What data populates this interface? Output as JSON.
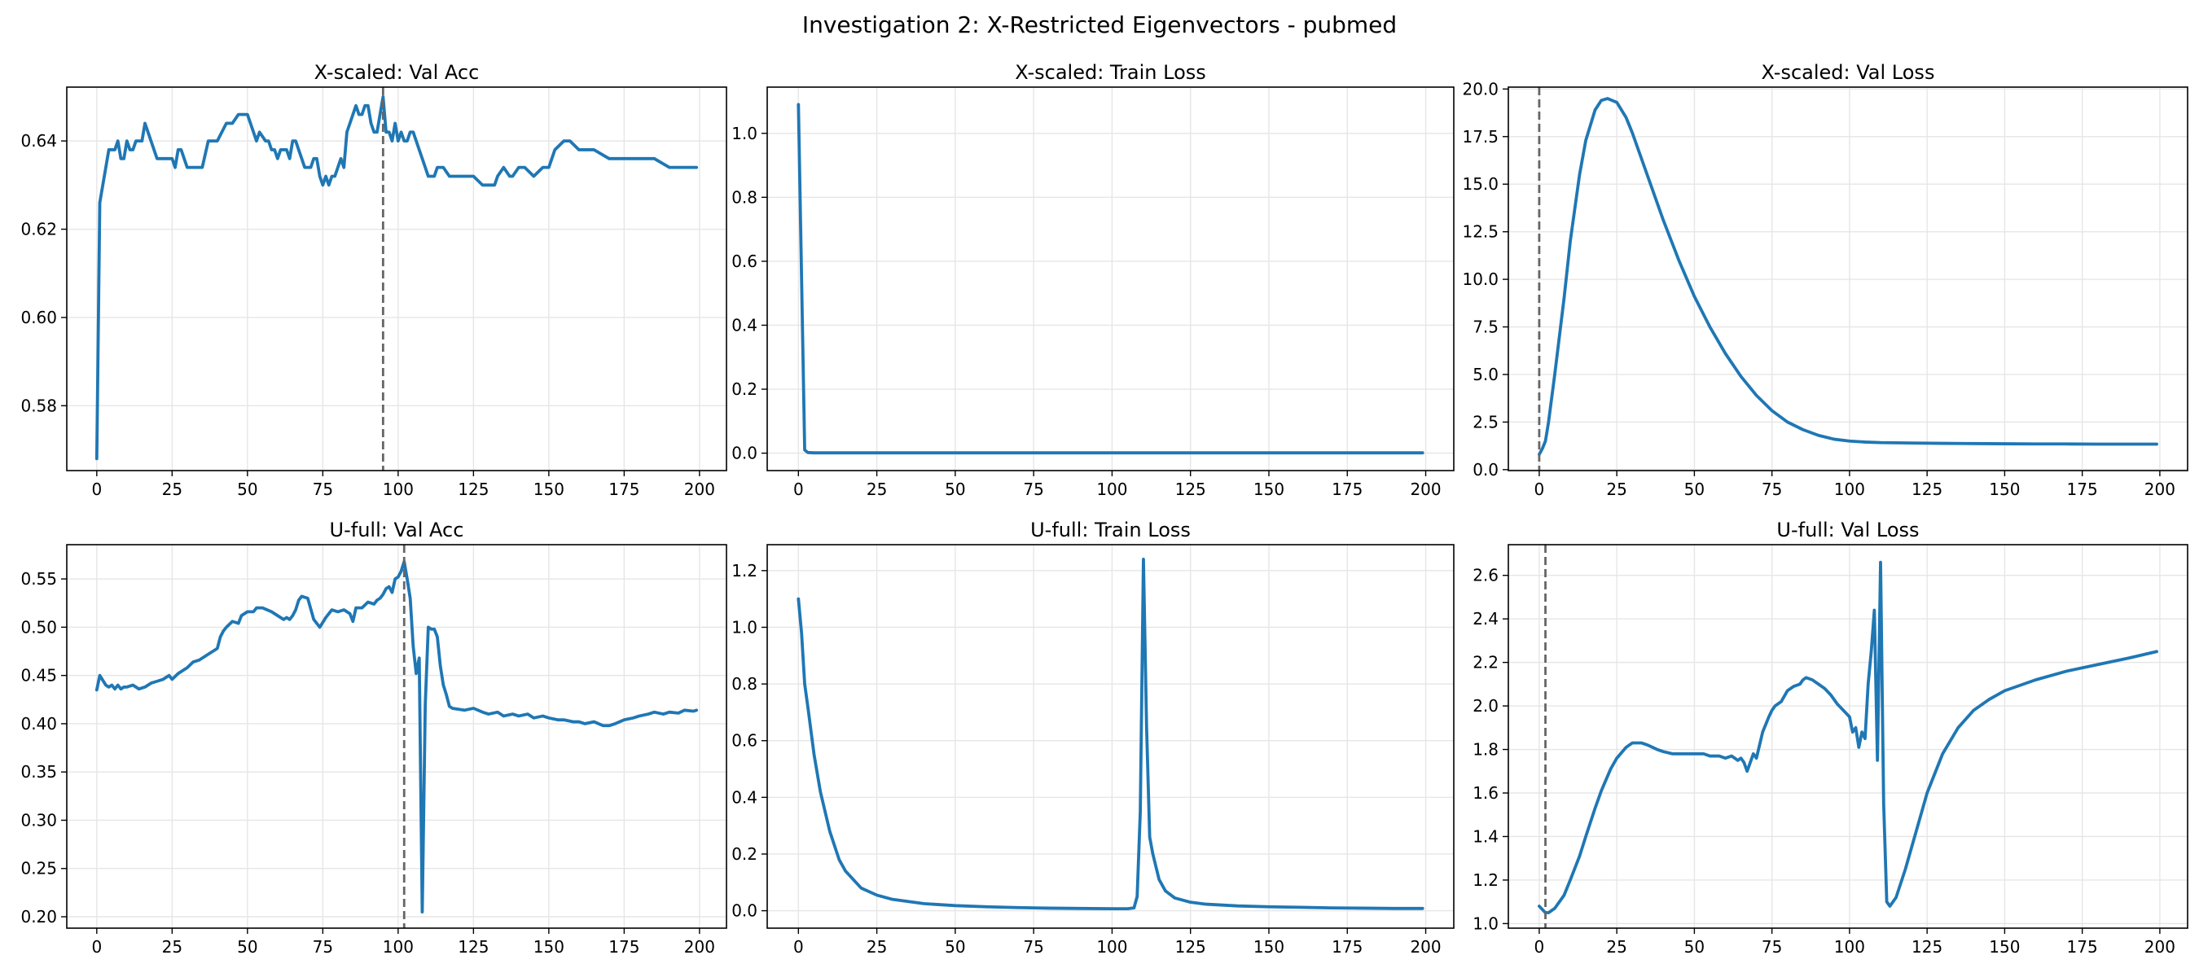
{
  "figure": {
    "suptitle": "Investigation 2: X-Restricted Eigenvectors - pubmed",
    "line_color": "#1f77b4",
    "vline_color": "#666666"
  },
  "chart_data": [
    {
      "type": "line",
      "title": "X-scaled: Val Acc",
      "xlim": [
        -9.95,
        208.95
      ],
      "ylim": [
        0.5653,
        0.6522
      ],
      "xticks": [
        0,
        25,
        50,
        75,
        100,
        125,
        150,
        175,
        200
      ],
      "yticks": [
        0.58,
        0.6,
        0.62,
        0.64
      ],
      "ytick_labels": [
        "0.58",
        "0.60",
        "0.62",
        "0.64"
      ],
      "grid": true,
      "vline_x": 95,
      "x": [
        0,
        1,
        2,
        3,
        4,
        5,
        6,
        7,
        8,
        9,
        10,
        11,
        12,
        13,
        14,
        15,
        16,
        17,
        18,
        19,
        20,
        22,
        25,
        26,
        27,
        28,
        30,
        33,
        35,
        37,
        38,
        40,
        43,
        45,
        47,
        48,
        50,
        51,
        52,
        53,
        54,
        56,
        57,
        58,
        59,
        60,
        61,
        62,
        63,
        64,
        65,
        66,
        67,
        68,
        69,
        70,
        71,
        72,
        73,
        74,
        75,
        76,
        77,
        78,
        79,
        80,
        81,
        82,
        83,
        84,
        85,
        86,
        87,
        88,
        89,
        90,
        91,
        92,
        93,
        94,
        95,
        96,
        97,
        98,
        99,
        100,
        101,
        102,
        103,
        104,
        105,
        106,
        107,
        108,
        109,
        110,
        112,
        113,
        115,
        117,
        118,
        120,
        123,
        125,
        128,
        130,
        132,
        133,
        135,
        137,
        138,
        140,
        142,
        145,
        148,
        150,
        152,
        155,
        157,
        160,
        165,
        170,
        175,
        181,
        182,
        185,
        190,
        195,
        199
      ],
      "y": [
        0.568,
        0.626,
        0.63,
        0.634,
        0.638,
        0.638,
        0.638,
        0.64,
        0.636,
        0.636,
        0.64,
        0.638,
        0.638,
        0.64,
        0.64,
        0.64,
        0.644,
        0.642,
        0.64,
        0.638,
        0.636,
        0.636,
        0.636,
        0.634,
        0.638,
        0.638,
        0.634,
        0.634,
        0.634,
        0.64,
        0.64,
        0.64,
        0.644,
        0.644,
        0.646,
        0.646,
        0.646,
        0.644,
        0.642,
        0.64,
        0.642,
        0.64,
        0.64,
        0.638,
        0.638,
        0.636,
        0.638,
        0.638,
        0.638,
        0.636,
        0.64,
        0.64,
        0.638,
        0.636,
        0.634,
        0.634,
        0.634,
        0.636,
        0.636,
        0.632,
        0.63,
        0.632,
        0.63,
        0.632,
        0.632,
        0.634,
        0.636,
        0.634,
        0.642,
        0.644,
        0.646,
        0.648,
        0.646,
        0.646,
        0.648,
        0.648,
        0.644,
        0.642,
        0.642,
        0.646,
        0.65,
        0.642,
        0.642,
        0.64,
        0.644,
        0.64,
        0.642,
        0.64,
        0.64,
        0.642,
        0.642,
        0.64,
        0.638,
        0.636,
        0.634,
        0.632,
        0.632,
        0.634,
        0.634,
        0.632,
        0.632,
        0.632,
        0.632,
        0.632,
        0.63,
        0.63,
        0.63,
        0.632,
        0.634,
        0.632,
        0.632,
        0.634,
        0.634,
        0.632,
        0.634,
        0.634,
        0.638,
        0.64,
        0.64,
        0.638,
        0.638,
        0.636,
        0.636,
        0.636,
        0.636,
        0.636,
        0.634,
        0.634,
        0.634
      ]
    },
    {
      "type": "line",
      "title": "X-scaled: Train Loss",
      "xlim": [
        -9.95,
        208.95
      ],
      "ylim": [
        -0.0545,
        1.1445
      ],
      "xticks": [
        0,
        25,
        50,
        75,
        100,
        125,
        150,
        175,
        200
      ],
      "yticks": [
        0.0,
        0.2,
        0.4,
        0.6,
        0.8,
        1.0
      ],
      "ytick_labels": [
        "0.0",
        "0.2",
        "0.4",
        "0.6",
        "0.8",
        "1.0"
      ],
      "grid": true,
      "vline_x": null,
      "x": [
        0,
        1,
        2,
        3,
        5,
        10,
        50,
        100,
        150,
        199
      ],
      "y": [
        1.09,
        0.55,
        0.01,
        0.002,
        0.001,
        0.001,
        0.001,
        0.001,
        0.001,
        0.001
      ]
    },
    {
      "type": "line",
      "title": "X-scaled: Val Loss",
      "xlim": [
        -9.95,
        208.95
      ],
      "ylim": [
        -0.05,
        20.1
      ],
      "xticks": [
        0,
        25,
        50,
        75,
        100,
        125,
        150,
        175,
        200
      ],
      "yticks": [
        0.0,
        2.5,
        5.0,
        7.5,
        10.0,
        12.5,
        15.0,
        17.5,
        20.0
      ],
      "ytick_labels": [
        "0.0",
        "2.5",
        "5.0",
        "7.5",
        "10.0",
        "12.5",
        "15.0",
        "17.5",
        "20.0"
      ],
      "grid": true,
      "vline_x": 0,
      "x": [
        0,
        1,
        2,
        3,
        5,
        8,
        10,
        13,
        15,
        18,
        20,
        22,
        25,
        28,
        30,
        35,
        40,
        45,
        50,
        55,
        60,
        65,
        70,
        75,
        80,
        85,
        90,
        95,
        100,
        105,
        110,
        120,
        130,
        140,
        150,
        160,
        170,
        180,
        190,
        199
      ],
      "y": [
        0.8,
        1.1,
        1.5,
        2.5,
        5.0,
        9.0,
        12.0,
        15.5,
        17.3,
        18.9,
        19.4,
        19.5,
        19.3,
        18.5,
        17.7,
        15.4,
        13.1,
        11.0,
        9.1,
        7.5,
        6.1,
        4.9,
        3.9,
        3.1,
        2.5,
        2.1,
        1.8,
        1.6,
        1.5,
        1.45,
        1.42,
        1.4,
        1.38,
        1.37,
        1.36,
        1.35,
        1.35,
        1.34,
        1.34,
        1.34
      ]
    },
    {
      "type": "line",
      "title": "U-full: Val Acc",
      "xlim": [
        -9.95,
        208.95
      ],
      "ylim": [
        0.1882,
        0.5855
      ],
      "xticks": [
        0,
        25,
        50,
        75,
        100,
        125,
        150,
        175,
        200
      ],
      "yticks": [
        0.2,
        0.25,
        0.3,
        0.35,
        0.4,
        0.45,
        0.5,
        0.55
      ],
      "ytick_labels": [
        "0.20",
        "0.25",
        "0.30",
        "0.35",
        "0.40",
        "0.45",
        "0.50",
        "0.55"
      ],
      "grid": true,
      "vline_x": 102,
      "x": [
        0,
        1,
        2,
        3,
        4,
        5,
        6,
        7,
        8,
        9,
        10,
        12,
        14,
        16,
        18,
        20,
        22,
        24,
        25,
        27,
        30,
        32,
        34,
        36,
        38,
        40,
        41,
        42,
        43,
        45,
        47,
        48,
        50,
        52,
        53,
        55,
        58,
        60,
        62,
        63,
        64,
        65,
        66,
        67,
        68,
        70,
        72,
        74,
        76,
        78,
        80,
        82,
        84,
        85,
        86,
        88,
        90,
        92,
        93,
        94,
        95,
        96,
        97,
        98,
        99,
        100,
        101,
        102,
        103,
        104,
        105,
        106,
        107,
        108,
        109,
        110,
        111,
        112,
        113,
        114,
        115,
        116,
        117,
        118,
        120,
        122,
        125,
        128,
        130,
        133,
        135,
        138,
        140,
        143,
        145,
        148,
        150,
        153,
        155,
        158,
        160,
        162,
        165,
        168,
        170,
        172,
        175,
        178,
        180,
        183,
        185,
        188,
        190,
        193,
        195,
        198,
        199
      ],
      "y": [
        0.435,
        0.45,
        0.445,
        0.44,
        0.438,
        0.44,
        0.436,
        0.44,
        0.436,
        0.438,
        0.438,
        0.44,
        0.436,
        0.438,
        0.442,
        0.444,
        0.446,
        0.45,
        0.446,
        0.452,
        0.458,
        0.464,
        0.466,
        0.47,
        0.474,
        0.478,
        0.49,
        0.496,
        0.5,
        0.506,
        0.504,
        0.512,
        0.516,
        0.516,
        0.52,
        0.52,
        0.516,
        0.512,
        0.508,
        0.51,
        0.508,
        0.512,
        0.518,
        0.528,
        0.532,
        0.53,
        0.508,
        0.5,
        0.51,
        0.518,
        0.516,
        0.518,
        0.514,
        0.506,
        0.52,
        0.52,
        0.526,
        0.524,
        0.528,
        0.53,
        0.534,
        0.54,
        0.542,
        0.536,
        0.55,
        0.552,
        0.558,
        0.568,
        0.55,
        0.53,
        0.48,
        0.452,
        0.468,
        0.205,
        0.42,
        0.5,
        0.498,
        0.498,
        0.49,
        0.46,
        0.44,
        0.43,
        0.418,
        0.416,
        0.415,
        0.414,
        0.416,
        0.412,
        0.41,
        0.412,
        0.408,
        0.41,
        0.408,
        0.41,
        0.406,
        0.408,
        0.406,
        0.404,
        0.404,
        0.402,
        0.402,
        0.4,
        0.402,
        0.398,
        0.398,
        0.4,
        0.404,
        0.406,
        0.408,
        0.41,
        0.412,
        0.41,
        0.412,
        0.411,
        0.414,
        0.413,
        0.414
      ]
    },
    {
      "type": "line",
      "title": "U-full: Train Loss",
      "xlim": [
        -9.95,
        208.95
      ],
      "ylim": [
        -0.0615,
        1.2915
      ],
      "xticks": [
        0,
        25,
        50,
        75,
        100,
        125,
        150,
        175,
        200
      ],
      "yticks": [
        0.0,
        0.2,
        0.4,
        0.6,
        0.8,
        1.0,
        1.2
      ],
      "ytick_labels": [
        "0.0",
        "0.2",
        "0.4",
        "0.6",
        "0.8",
        "1.0",
        "1.2"
      ],
      "grid": true,
      "vline_x": null,
      "x": [
        0,
        1,
        2,
        3,
        5,
        7,
        10,
        13,
        15,
        20,
        25,
        30,
        40,
        50,
        60,
        70,
        80,
        90,
        100,
        105,
        107,
        108,
        109,
        110,
        111,
        112,
        113,
        115,
        117,
        120,
        125,
        130,
        140,
        150,
        160,
        170,
        180,
        190,
        199
      ],
      "y": [
        1.1,
        0.98,
        0.8,
        0.72,
        0.55,
        0.42,
        0.28,
        0.18,
        0.14,
        0.08,
        0.055,
        0.04,
        0.025,
        0.018,
        0.014,
        0.011,
        0.009,
        0.008,
        0.007,
        0.007,
        0.01,
        0.05,
        0.35,
        1.24,
        0.65,
        0.26,
        0.2,
        0.11,
        0.07,
        0.045,
        0.03,
        0.023,
        0.017,
        0.014,
        0.012,
        0.01,
        0.009,
        0.008,
        0.008
      ]
    },
    {
      "type": "line",
      "title": "U-full: Val Loss",
      "xlim": [
        -9.95,
        208.95
      ],
      "ylim": [
        0.979,
        2.741
      ],
      "xticks": [
        0,
        25,
        50,
        75,
        100,
        125,
        150,
        175,
        200
      ],
      "yticks": [
        1.0,
        1.2,
        1.4,
        1.6,
        1.8,
        2.0,
        2.2,
        2.4,
        2.6
      ],
      "ytick_labels": [
        "1.0",
        "1.2",
        "1.4",
        "1.6",
        "1.8",
        "2.0",
        "2.2",
        "2.4",
        "2.6"
      ],
      "grid": true,
      "vline_x": 2,
      "x": [
        0,
        2,
        3,
        5,
        8,
        10,
        13,
        15,
        18,
        20,
        23,
        25,
        28,
        30,
        33,
        35,
        38,
        40,
        43,
        45,
        48,
        50,
        53,
        55,
        58,
        60,
        62,
        63,
        64,
        65,
        66,
        67,
        68,
        69,
        70,
        72,
        74,
        75,
        76,
        78,
        80,
        82,
        84,
        85,
        86,
        88,
        90,
        92,
        94,
        96,
        98,
        100,
        101,
        102,
        103,
        104,
        105,
        106,
        107,
        108,
        109,
        110,
        111,
        112,
        113,
        115,
        118,
        120,
        125,
        130,
        135,
        140,
        145,
        150,
        160,
        170,
        180,
        190,
        199
      ],
      "y": [
        1.08,
        1.05,
        1.05,
        1.07,
        1.13,
        1.2,
        1.31,
        1.4,
        1.53,
        1.61,
        1.71,
        1.76,
        1.81,
        1.83,
        1.83,
        1.82,
        1.8,
        1.79,
        1.78,
        1.78,
        1.78,
        1.78,
        1.78,
        1.77,
        1.77,
        1.76,
        1.77,
        1.76,
        1.75,
        1.76,
        1.74,
        1.7,
        1.74,
        1.78,
        1.76,
        1.88,
        1.95,
        1.98,
        2.0,
        2.02,
        2.07,
        2.09,
        2.1,
        2.12,
        2.13,
        2.12,
        2.1,
        2.08,
        2.05,
        2.01,
        1.98,
        1.95,
        1.88,
        1.9,
        1.81,
        1.88,
        1.85,
        2.1,
        2.25,
        2.44,
        1.75,
        2.66,
        1.55,
        1.1,
        1.08,
        1.12,
        1.25,
        1.35,
        1.6,
        1.78,
        1.9,
        1.98,
        2.03,
        2.07,
        2.12,
        2.16,
        2.19,
        2.22,
        2.25
      ]
    }
  ]
}
